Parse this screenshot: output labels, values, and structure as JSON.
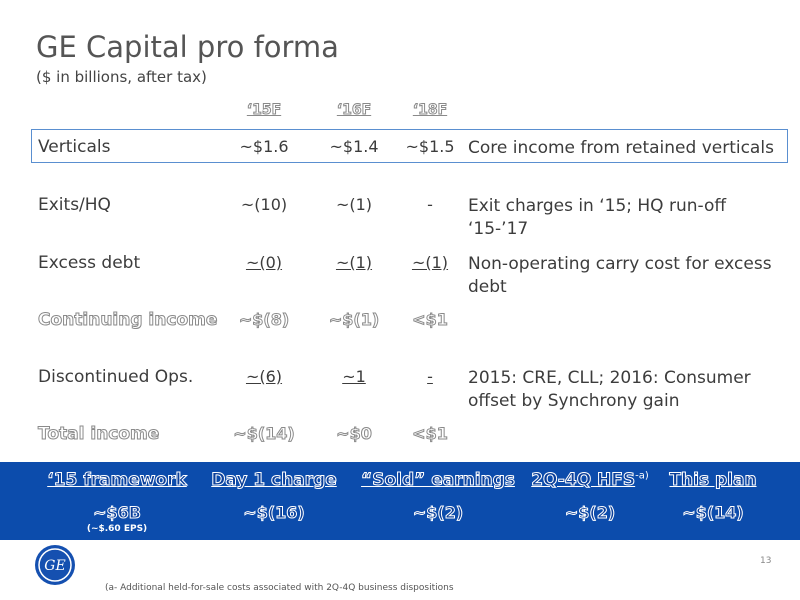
{
  "title": "GE Capital pro forma",
  "subtitle": "($ in billions, after tax)",
  "table": {
    "columns": [
      "‘15F",
      "‘16F",
      "‘18F"
    ],
    "rows": [
      {
        "label": "Verticals",
        "values": [
          "~$1.6",
          "~$1.4",
          "~$1.5"
        ],
        "note": "Core income from retained verticals",
        "highlight": true
      },
      {
        "label": "Exits/HQ",
        "values": [
          "~(10)",
          "~(1)",
          "-"
        ],
        "note": "Exit charges in ‘15; HQ run-off ‘15-’17"
      },
      {
        "label": "Excess debt",
        "values": [
          "~(0)",
          "~(1)",
          "~(1)"
        ],
        "note": "Non-operating carry cost for excess debt",
        "underline": true
      },
      {
        "label": "Continuing income",
        "values": [
          "~$(8)",
          "~$(1)",
          "<$1"
        ],
        "outline": true
      },
      {
        "label": "Discontinued Ops.",
        "values": [
          "~(6)",
          "~1",
          "-"
        ],
        "note": "2015: CRE, CLL; 2016: Consumer offset by Synchrony gain",
        "underline": true
      },
      {
        "label": "Total income",
        "values": [
          "~$(14)",
          "~$0",
          "<$1"
        ],
        "outline": true
      }
    ]
  },
  "bar": {
    "items": [
      {
        "heading": "‘15 framework",
        "value": "~$6B",
        "sub": "(~$.60 EPS)"
      },
      {
        "heading": "Day 1 charge",
        "value": "~$(16)"
      },
      {
        "heading": "“Sold” earnings",
        "value": "~$(2)"
      },
      {
        "heading": "2Q-4Q HFS",
        "sup": "-a)",
        "value": "~$(2)"
      },
      {
        "heading": "This plan",
        "value": "~$(14)"
      }
    ]
  },
  "page_number": "13",
  "footnote": "(a- Additional held-for-sale costs associated with 2Q-4Q business dispositions"
}
